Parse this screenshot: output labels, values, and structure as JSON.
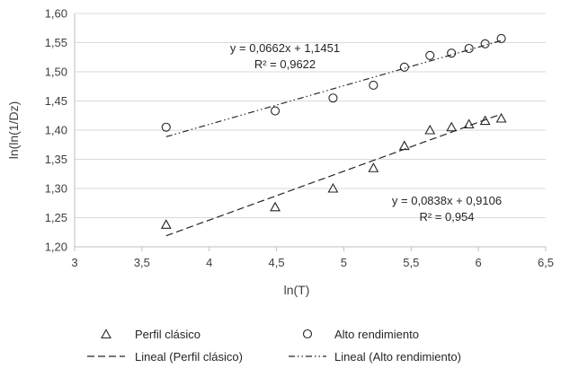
{
  "chart_data": {
    "type": "scatter",
    "xlabel": "ln(T)",
    "ylabel": "ln(ln(1/Dz)",
    "xlim": [
      3,
      6.5
    ],
    "ylim": [
      1.2,
      1.6
    ],
    "x_ticks": [
      "3",
      "3,5",
      "4",
      "4,5",
      "5",
      "5,5",
      "6",
      "6,5"
    ],
    "y_ticks": [
      "1,20",
      "1,25",
      "1,30",
      "1,35",
      "1,40",
      "1,45",
      "1,50",
      "1,55",
      "1,60"
    ],
    "grid": "horizontal",
    "legend_position": "bottom",
    "series": [
      {
        "name": "Perfil clásico",
        "marker": "triangle",
        "x": [
          3.68,
          4.49,
          4.92,
          5.22,
          5.45,
          5.64,
          5.8,
          5.93,
          6.05,
          6.17
        ],
        "y": [
          1.238,
          1.268,
          1.3,
          1.335,
          1.373,
          1.4,
          1.405,
          1.41,
          1.416,
          1.42
        ]
      },
      {
        "name": "Alto rendimiento",
        "marker": "circle",
        "x": [
          3.68,
          4.49,
          4.92,
          5.22,
          5.45,
          5.64,
          5.8,
          5.93,
          6.05,
          6.17
        ],
        "y": [
          1.405,
          1.433,
          1.455,
          1.477,
          1.508,
          1.528,
          1.532,
          1.54,
          1.548,
          1.557
        ]
      }
    ],
    "trendlines": [
      {
        "name": "Lineal (Perfil clásico)",
        "style": "dashed",
        "slope": 0.0838,
        "intercept": 0.9106,
        "x_range": [
          3.68,
          6.17
        ],
        "equation": "y = 0,0838x + 0,9106",
        "r2": "R² = 0,954"
      },
      {
        "name": "Lineal (Alto rendimiento)",
        "style": "dash-dot-dot",
        "slope": 0.0662,
        "intercept": 1.1451,
        "x_range": [
          3.68,
          6.17
        ],
        "equation": "y = 0,0662x + 1,1451",
        "r2": "R² = 0,9622"
      }
    ],
    "colors": {
      "axis": "#bfbfbf",
      "grid": "#d9d9d9",
      "marks": "#262626"
    }
  }
}
